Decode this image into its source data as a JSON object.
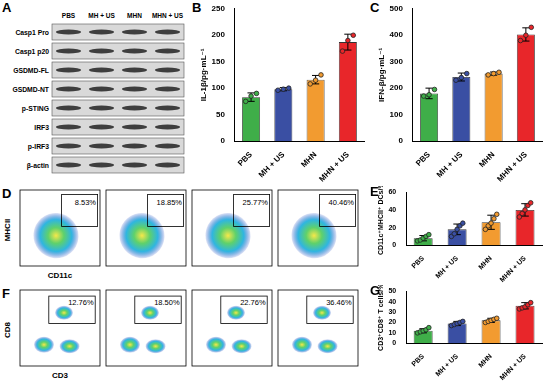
{
  "blot": {
    "panel": "A",
    "lanes": [
      "PBS",
      "MH + US",
      "MHN",
      "MHN + US"
    ],
    "rows": [
      "Casp1 Pro",
      "Casp1 p20",
      "GSDMD-FL",
      "GSDMD-NT",
      "p-STING",
      "IRF3",
      "p-IRF3",
      "β-actin"
    ]
  },
  "flow": [
    {
      "panel": "D",
      "x_label": "CD11c",
      "y_label": "MHCII",
      "gates": [
        "8.53%",
        "18.85%",
        "25.77%",
        "40.46%"
      ]
    },
    {
      "panel": "F",
      "x_label": "CD3",
      "y_label": "CD8",
      "gates": [
        "12.76%",
        "18.50%",
        "22.76%",
        "36.46%"
      ]
    }
  ],
  "chart_data": [
    {
      "panel": "B",
      "type": "bar",
      "y_label": "IL-1β/pg·mL⁻¹",
      "categories": [
        "PBS",
        "MH + US",
        "MHN",
        "MHN + US"
      ],
      "colors": [
        "#3fae49",
        "#3a4fa3",
        "#f29b30",
        "#e8262a"
      ],
      "values": [
        83,
        98,
        116,
        187
      ],
      "errors": [
        8,
        3,
        8,
        15
      ],
      "points": [
        [
          75,
          85,
          90
        ],
        [
          96,
          98,
          100
        ],
        [
          108,
          115,
          125
        ],
        [
          170,
          190,
          200
        ]
      ],
      "ylim": [
        0,
        250
      ],
      "yticks": [
        0,
        50,
        100,
        150,
        200,
        250
      ],
      "grid": false
    },
    {
      "panel": "C",
      "type": "bar",
      "y_label": "IFN-β/pg·mL⁻¹",
      "categories": [
        "PBS",
        "MH + US",
        "MHN",
        "MHN + US"
      ],
      "colors": [
        "#3fae49",
        "#3a4fa3",
        "#f29b30",
        "#e8262a"
      ],
      "values": [
        180,
        242,
        255,
        403
      ],
      "errors": [
        20,
        15,
        6,
        25
      ],
      "points": [
        [
          170,
          175,
          195
        ],
        [
          230,
          240,
          255
        ],
        [
          250,
          255,
          260
        ],
        [
          380,
          400,
          430
        ]
      ],
      "ylim": [
        0,
        500
      ],
      "yticks": [
        0,
        100,
        200,
        300,
        400,
        500
      ],
      "grid": false
    },
    {
      "panel": "E",
      "type": "bar",
      "y_label": "CD11c⁺MHCII⁺ DCs/%",
      "categories": [
        "PBS",
        "MH + US",
        "MHN",
        "MHN + US"
      ],
      "colors": [
        "#3fae49",
        "#3a4fa3",
        "#f29b30",
        "#e8262a"
      ],
      "values": [
        8,
        18,
        26,
        40
      ],
      "errors": [
        3,
        6,
        8,
        7
      ],
      "points": [
        [
          5,
          6,
          8,
          10,
          12
        ],
        [
          10,
          13,
          18,
          22,
          25
        ],
        [
          18,
          22,
          25,
          30,
          35
        ],
        [
          32,
          36,
          40,
          45,
          48
        ]
      ],
      "ylim": [
        0,
        60
      ],
      "yticks": [
        0,
        20,
        40,
        60
      ],
      "grid": false
    },
    {
      "panel": "G",
      "type": "bar",
      "y_label": "CD3⁺CD8⁺ T cells/%",
      "categories": [
        "PBS",
        "MH + US",
        "MHN",
        "MHN + US"
      ],
      "colors": [
        "#3fae49",
        "#3a4fa3",
        "#f29b30",
        "#e8262a"
      ],
      "values": [
        12,
        19,
        22,
        36
      ],
      "errors": [
        2,
        2,
        2,
        3
      ],
      "points": [
        [
          10,
          11,
          12,
          13,
          15
        ],
        [
          17,
          18,
          19,
          20,
          21
        ],
        [
          20,
          21,
          22,
          23,
          24
        ],
        [
          33,
          34,
          35,
          37,
          39
        ]
      ],
      "ylim": [
        0,
        50
      ],
      "yticks": [
        0,
        10,
        20,
        30,
        40,
        50
      ],
      "grid": false
    }
  ]
}
